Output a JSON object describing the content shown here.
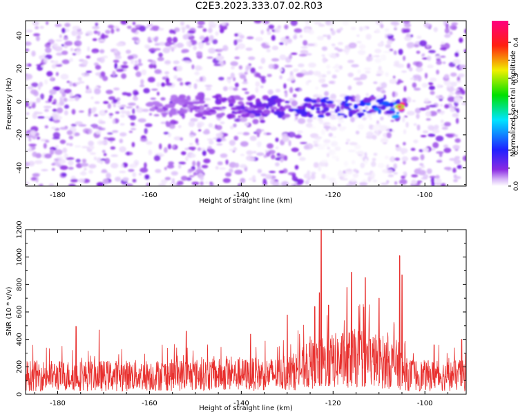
{
  "title": "C2E3.2023.333.07.02.R03",
  "colors": {
    "signal": "#e8302e",
    "axis": "#000000"
  },
  "chart_data": [
    {
      "type": "heatmap",
      "panel": "spectrogram",
      "xlabel": "Height of straight line (km)",
      "ylabel": "Frequency (Hz)",
      "xlim": [
        -187,
        -91
      ],
      "ylim": [
        -51,
        49
      ],
      "xticks": [
        -180,
        -160,
        -140,
        -120,
        -100
      ],
      "yticks": [
        -40,
        -20,
        0,
        20,
        40
      ],
      "grid": false,
      "colorbar": {
        "label": "Normalized spectral amplitude",
        "range": [
          0,
          0.46
        ],
        "ticks": [
          "0.0",
          "0.1",
          "0.2",
          "0.3",
          "0.4"
        ],
        "colormap": "rainbow (purple-blue-cyan-green-yellow-red-magenta)"
      },
      "features": {
        "background": "noise blobs, amplitude 0.0 to 0.05",
        "signal_band": {
          "frequency_hz": -3,
          "x_start": -160,
          "x_end": -104,
          "peak_amplitude": 0.45,
          "peak_x": -105.5
        },
        "quiet_region": {
          "x_start": -126,
          "x_end": -108
        }
      }
    },
    {
      "type": "line",
      "panel": "snr",
      "xlabel": "Height of straight line (km)",
      "ylabel": "SNR (10 * v/v)",
      "xlim": [
        -187,
        -91
      ],
      "ylim": [
        0,
        1200
      ],
      "xticks": [
        -180,
        -160,
        -140,
        -120,
        -100
      ],
      "yticks": [
        0,
        200,
        400,
        600,
        800,
        1000,
        1200
      ],
      "grid": false,
      "series": [
        {
          "color": "#e8302e",
          "baseline_x": [
            -187,
            -170,
            -155,
            -140,
            -130,
            -125,
            -120,
            -115,
            -110,
            -106,
            -104,
            -100,
            -91
          ],
          "baseline_y": [
            150,
            150,
            155,
            160,
            165,
            230,
            270,
            290,
            270,
            240,
            160,
            150,
            150
          ],
          "spikes": [
            {
              "x": -176,
              "y": 495
            },
            {
              "x": -171,
              "y": 470
            },
            {
              "x": -152,
              "y": 460
            },
            {
              "x": -138,
              "y": 440
            },
            {
              "x": -130,
              "y": 580
            },
            {
              "x": -124,
              "y": 640
            },
            {
              "x": -123,
              "y": 740
            },
            {
              "x": -122.6,
              "y": 1200
            },
            {
              "x": -121,
              "y": 650
            },
            {
              "x": -117,
              "y": 780
            },
            {
              "x": -116,
              "y": 890
            },
            {
              "x": -113,
              "y": 850
            },
            {
              "x": -110,
              "y": 700
            },
            {
              "x": -105.5,
              "y": 1010
            },
            {
              "x": -105,
              "y": 870
            },
            {
              "x": -98,
              "y": 360
            },
            {
              "x": -92,
              "y": 400
            }
          ]
        }
      ]
    }
  ]
}
